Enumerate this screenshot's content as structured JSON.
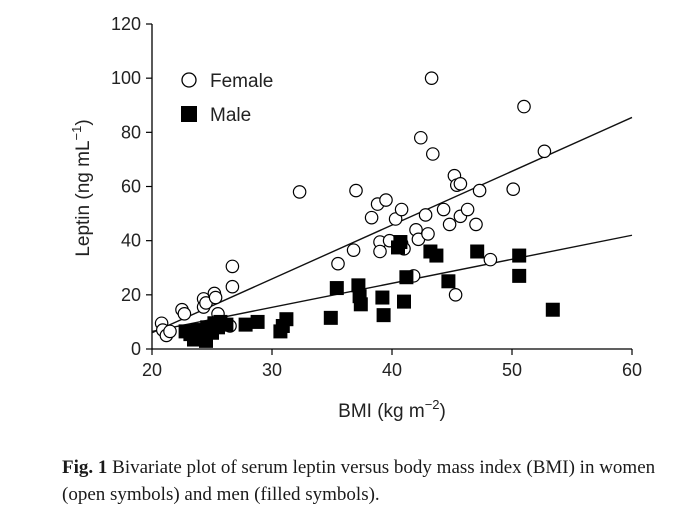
{
  "chart_data": {
    "type": "scatter",
    "xlabel": "BMI (kg m",
    "xlabel_sup": "−2",
    "xlabel_close": ")",
    "ylabel": "Leptin (ng mL",
    "ylabel_sup": "−1",
    "ylabel_close": ")",
    "xlim": [
      20,
      60
    ],
    "ylim": [
      0,
      120
    ],
    "xticks": [
      20,
      30,
      40,
      50,
      60
    ],
    "yticks": [
      0,
      20,
      40,
      60,
      80,
      100,
      120
    ],
    "legend_position": "top-left",
    "series": [
      {
        "name": "Female",
        "marker": "open-circle",
        "color": "#000000",
        "points": [
          [
            20.8,
            9.5
          ],
          [
            20.9,
            7
          ],
          [
            21.2,
            5
          ],
          [
            21.5,
            6.5
          ],
          [
            22.5,
            14.5
          ],
          [
            22.7,
            13
          ],
          [
            23.5,
            5
          ],
          [
            24.0,
            4
          ],
          [
            24.3,
            18.5
          ],
          [
            24.3,
            15.5
          ],
          [
            24.5,
            17
          ],
          [
            25.2,
            20.5
          ],
          [
            25.3,
            19
          ],
          [
            25.5,
            13
          ],
          [
            26.5,
            8.5
          ],
          [
            26.7,
            23
          ],
          [
            26.7,
            30.5
          ],
          [
            32.3,
            58
          ],
          [
            35.5,
            31.5
          ],
          [
            36.8,
            36.5
          ],
          [
            37.0,
            58.5
          ],
          [
            38.3,
            48.5
          ],
          [
            38.8,
            53.5
          ],
          [
            39.0,
            39.5
          ],
          [
            39.0,
            36
          ],
          [
            39.5,
            55
          ],
          [
            39.8,
            40
          ],
          [
            40.3,
            48
          ],
          [
            40.8,
            51.5
          ],
          [
            40.8,
            39
          ],
          [
            41.0,
            37
          ],
          [
            41.8,
            27
          ],
          [
            42.0,
            44
          ],
          [
            42.2,
            40.5
          ],
          [
            42.4,
            78
          ],
          [
            42.8,
            49.5
          ],
          [
            43.0,
            42.5
          ],
          [
            43.3,
            100
          ],
          [
            43.4,
            72
          ],
          [
            44.3,
            51.5
          ],
          [
            44.8,
            46
          ],
          [
            45.2,
            64
          ],
          [
            45.3,
            20
          ],
          [
            45.4,
            60.5
          ],
          [
            45.7,
            61
          ],
          [
            45.7,
            49
          ],
          [
            46.3,
            51.5
          ],
          [
            47.0,
            46
          ],
          [
            47.3,
            58.5
          ],
          [
            48.2,
            33
          ],
          [
            50.1,
            59
          ],
          [
            51.0,
            89.5
          ],
          [
            52.7,
            73
          ]
        ]
      },
      {
        "name": "Male",
        "marker": "filled-square",
        "color": "#000000",
        "points": [
          [
            22.8,
            6.5
          ],
          [
            23.2,
            5.5
          ],
          [
            23.5,
            3.5
          ],
          [
            23.8,
            7
          ],
          [
            24.2,
            4.5
          ],
          [
            24.5,
            3
          ],
          [
            24.6,
            8
          ],
          [
            25.0,
            6
          ],
          [
            25.2,
            9.5
          ],
          [
            25.5,
            8
          ],
          [
            25.7,
            10
          ],
          [
            26.2,
            9
          ],
          [
            27.8,
            9
          ],
          [
            28.8,
            10
          ],
          [
            30.7,
            6.5
          ],
          [
            30.9,
            8.5
          ],
          [
            31.2,
            11
          ],
          [
            34.9,
            11.5
          ],
          [
            35.4,
            22.5
          ],
          [
            37.2,
            23.5
          ],
          [
            37.3,
            19.5
          ],
          [
            37.4,
            16.5
          ],
          [
            39.2,
            19
          ],
          [
            39.3,
            12.5
          ],
          [
            40.5,
            37.5
          ],
          [
            40.7,
            39.5
          ],
          [
            41.0,
            17.5
          ],
          [
            41.2,
            26.5
          ],
          [
            43.2,
            36
          ],
          [
            43.7,
            34.5
          ],
          [
            44.7,
            25
          ],
          [
            47.1,
            36
          ],
          [
            50.6,
            34.5
          ],
          [
            50.6,
            27
          ],
          [
            53.4,
            14.5
          ]
        ]
      }
    ],
    "regression_lines": [
      {
        "series": "Female",
        "from": [
          20,
          6
        ],
        "to": [
          60,
          85.5
        ]
      },
      {
        "series": "Male",
        "from": [
          20,
          6.5
        ],
        "to": [
          60,
          42
        ]
      }
    ]
  },
  "caption": {
    "lead": "Fig. 1",
    "text": " Bivariate plot of serum leptin versus body mass index (BMI) in women (open symbols) and men (filled symbols)."
  }
}
